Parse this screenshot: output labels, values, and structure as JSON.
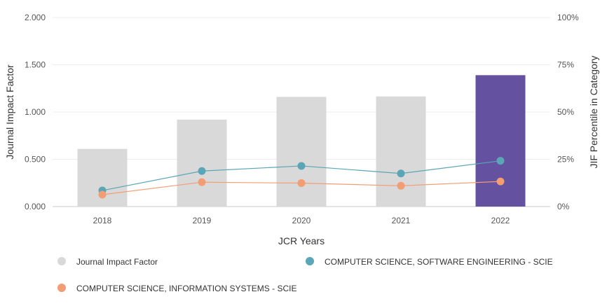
{
  "chart_data": {
    "type": "bar",
    "title": "",
    "xlabel": "JCR Years",
    "ylabel": "Journal Impact Factor",
    "y2label": "JIF Percentile in Category",
    "categories": [
      "2018",
      "2019",
      "2020",
      "2021",
      "2022"
    ],
    "ylim": [
      0,
      2
    ],
    "y2lim": [
      0,
      100
    ],
    "yticks": [
      "0.000",
      "0.500",
      "1.000",
      "1.500",
      "2.000"
    ],
    "y2ticks": [
      "0%",
      "25%",
      "50%",
      "75%",
      "100%"
    ],
    "grid": true,
    "series": [
      {
        "name": "Journal Impact Factor",
        "kind": "bar",
        "axis": "left",
        "values": [
          0.61,
          0.92,
          1.16,
          1.165,
          1.39
        ],
        "colors": [
          "#d9d9d9",
          "#d9d9d9",
          "#d9d9d9",
          "#d9d9d9",
          "#6452a1"
        ]
      },
      {
        "name": "COMPUTER SCIENCE, SOFTWARE ENGINEERING - SCIE",
        "kind": "line",
        "axis": "right",
        "color": "#5aa5b6",
        "values": [
          8.5,
          18.8,
          21.5,
          17.5,
          24.2
        ]
      },
      {
        "name": "COMPUTER SCIENCE, INFORMATION SYSTEMS - SCIE",
        "kind": "line",
        "axis": "right",
        "color": "#f29d74",
        "values": [
          6.3,
          12.9,
          12.4,
          11.0,
          13.3
        ]
      }
    ],
    "legend": {
      "placement": "bottom",
      "items": [
        {
          "label": "Journal Impact Factor",
          "color": "#d9d9d9"
        },
        {
          "label": "COMPUTER SCIENCE, SOFTWARE ENGINEERING - SCIE",
          "color": "#5aa5b6"
        },
        {
          "label": "COMPUTER SCIENCE, INFORMATION SYSTEMS - SCIE",
          "color": "#f29d74"
        }
      ]
    }
  }
}
